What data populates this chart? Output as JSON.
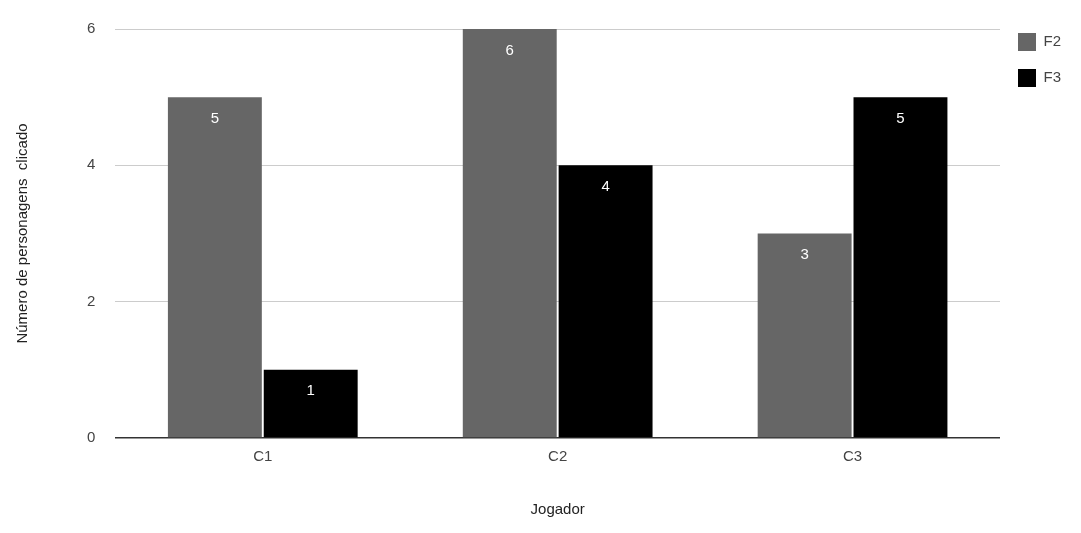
{
  "chart_data": {
    "type": "bar",
    "xlabel": "Jogador",
    "ylabel": "Número de personagens  clicado",
    "categories": [
      "C1",
      "C2",
      "C3"
    ],
    "series": [
      {
        "name": "F2",
        "color": "#666666",
        "values": [
          5,
          6,
          3
        ]
      },
      {
        "name": "F3",
        "color": "#000000",
        "values": [
          1,
          4,
          5
        ]
      }
    ],
    "ylim": [
      0,
      6
    ],
    "yticks": [
      0,
      2,
      4,
      6
    ],
    "grid": "y",
    "legend": "top right",
    "data_labels": true
  }
}
